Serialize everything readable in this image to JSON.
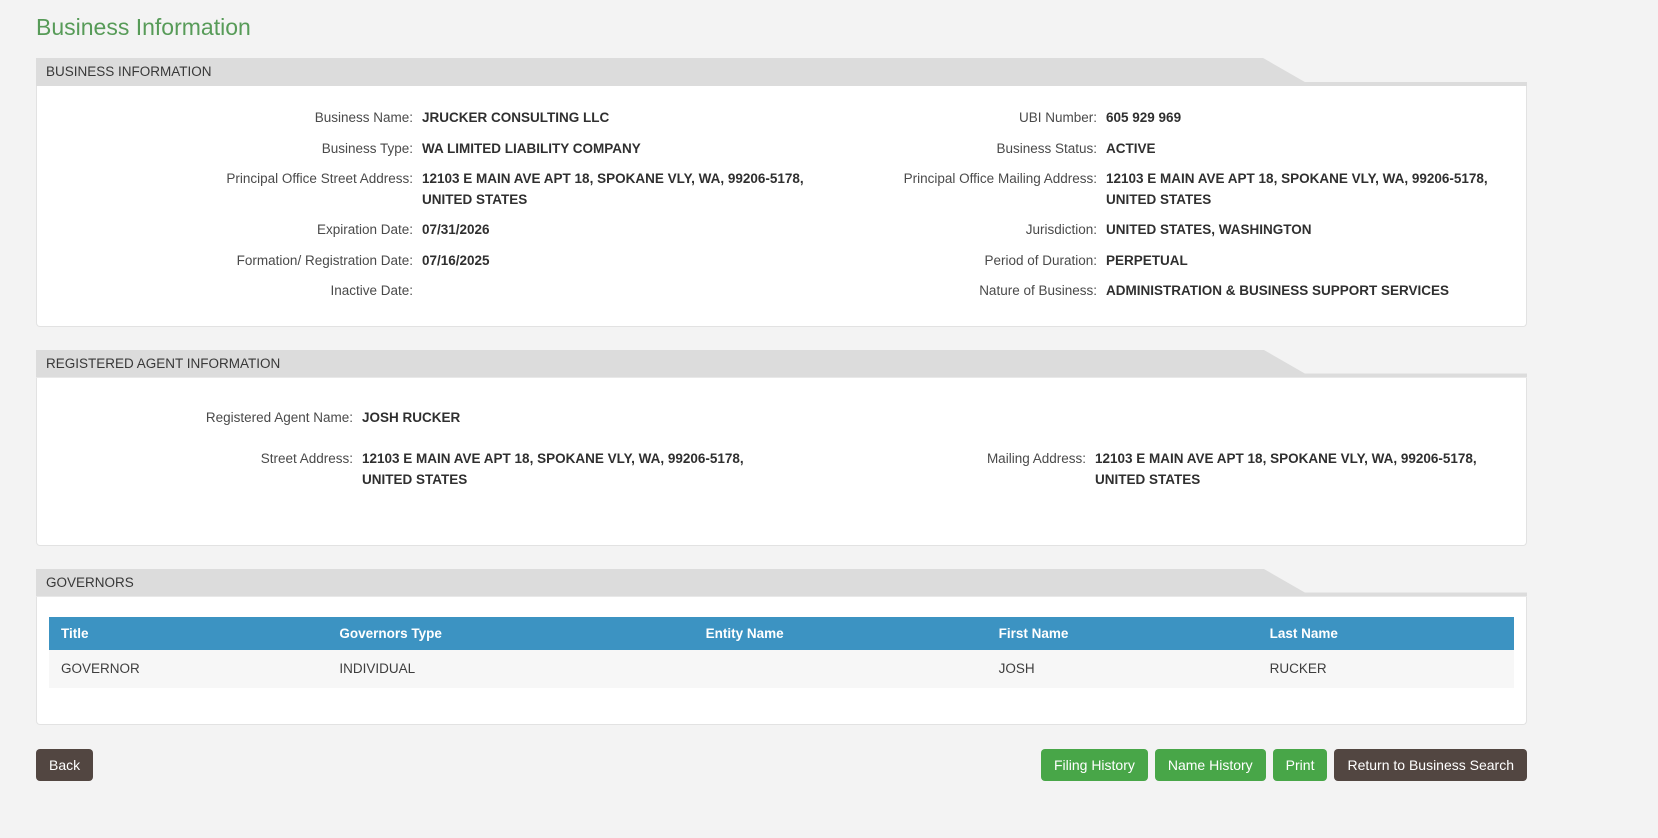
{
  "page_title": "Business Information",
  "colors": {
    "accent_green": "#579b58",
    "button_green": "#48a648",
    "button_dark": "#524641",
    "table_header_blue": "#3c93c2",
    "section_bar_gray": "#dcdcdc"
  },
  "sections": {
    "business": {
      "header": "BUSINESS INFORMATION",
      "left": [
        {
          "label": "Business Name:",
          "value": "JRUCKER CONSULTING LLC"
        },
        {
          "label": "Business Type:",
          "value": "WA LIMITED LIABILITY COMPANY"
        },
        {
          "label": "Principal Office Street Address:",
          "value": "12103 E MAIN AVE APT 18, SPOKANE VLY, WA, 99206-5178, UNITED STATES"
        },
        {
          "label": "Expiration Date:",
          "value": "07/31/2026"
        },
        {
          "label": "Formation/ Registration Date:",
          "value": "07/16/2025"
        },
        {
          "label": "Inactive Date:",
          "value": ""
        }
      ],
      "right": [
        {
          "label": "UBI Number:",
          "value": "605 929 969"
        },
        {
          "label": "Business Status:",
          "value": "ACTIVE"
        },
        {
          "label": "Principal Office Mailing Address:",
          "value": "12103 E MAIN AVE APT 18, SPOKANE VLY, WA, 99206-5178, UNITED STATES"
        },
        {
          "label": "Jurisdiction:",
          "value": "UNITED STATES, WASHINGTON"
        },
        {
          "label": "Period of Duration:",
          "value": "PERPETUAL"
        },
        {
          "label": "Nature of Business:",
          "value": "ADMINISTRATION & BUSINESS SUPPORT SERVICES"
        }
      ]
    },
    "agent": {
      "header": "REGISTERED AGENT INFORMATION",
      "name_label": "Registered Agent Name:",
      "name_value": "JOSH RUCKER",
      "street_label": "Street Address:",
      "street_value": "12103 E MAIN AVE APT 18, SPOKANE VLY, WA, 99206-5178, UNITED STATES",
      "mailing_label": "Mailing Address:",
      "mailing_value": "12103 E MAIN AVE APT 18, SPOKANE VLY, WA, 99206-5178, UNITED STATES"
    },
    "governors": {
      "header": "GOVERNORS",
      "columns": [
        "Title",
        "Governors Type",
        "Entity Name",
        "First Name",
        "Last Name"
      ],
      "rows": [
        {
          "title": "GOVERNOR",
          "governors_type": "INDIVIDUAL",
          "entity_name": "",
          "first_name": "JOSH",
          "last_name": "RUCKER"
        }
      ]
    }
  },
  "buttons": {
    "back": "Back",
    "filing_history": "Filing History",
    "name_history": "Name History",
    "print": "Print",
    "return_to_search": "Return to Business Search"
  }
}
